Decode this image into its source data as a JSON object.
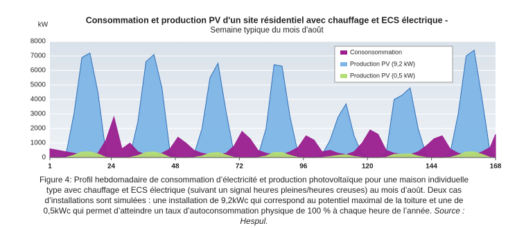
{
  "chart_data": {
    "type": "area",
    "title": "Consommation et production PV d'un site résidentiel avec chauffage et ECS électrique -",
    "subtitle": "Semaine typique du mois d'août",
    "ylabel": "kW",
    "x": [
      1,
      4,
      7,
      10,
      13,
      16,
      19,
      22,
      25,
      28,
      31,
      34,
      37,
      40,
      43,
      46,
      49,
      52,
      55,
      58,
      61,
      64,
      67,
      70,
      73,
      76,
      79,
      82,
      85,
      88,
      91,
      94,
      97,
      100,
      103,
      106,
      109,
      112,
      115,
      118,
      121,
      124,
      127,
      130,
      133,
      136,
      139,
      142,
      145,
      148,
      151,
      154,
      157,
      160,
      163,
      166,
      168
    ],
    "series": [
      {
        "name": "Consonsommation",
        "color": "#9a1d8e",
        "values": [
          600,
          500,
          400,
          300,
          200,
          200,
          300,
          1200,
          2800,
          600,
          1000,
          400,
          200,
          200,
          300,
          600,
          1400,
          1000,
          500,
          300,
          200,
          200,
          300,
          800,
          1800,
          1300,
          500,
          300,
          200,
          200,
          400,
          700,
          1500,
          1200,
          400,
          500,
          300,
          200,
          400,
          1000,
          1900,
          1600,
          500,
          300,
          200,
          200,
          400,
          800,
          1300,
          1500,
          600,
          300,
          200,
          200,
          400,
          700,
          1600
        ]
      },
      {
        "name": "Production PV (9,2 kW)",
        "color": "#7db5e6",
        "values": [
          0,
          0,
          200,
          3000,
          6900,
          7200,
          4500,
          300,
          0,
          0,
          100,
          2500,
          6600,
          7100,
          4800,
          400,
          0,
          0,
          200,
          2000,
          5500,
          6500,
          3200,
          300,
          0,
          0,
          100,
          2000,
          6400,
          6300,
          2800,
          300,
          0,
          0,
          200,
          1200,
          2800,
          3700,
          1500,
          200,
          0,
          0,
          300,
          4000,
          4300,
          4800,
          2000,
          200,
          0,
          0,
          300,
          3000,
          7000,
          7400,
          4000,
          300,
          0
        ]
      },
      {
        "name": "Production PV (0,5 kW)",
        "color": "#b4de74",
        "values": [
          0,
          0,
          10,
          170,
          380,
          400,
          250,
          20,
          0,
          0,
          10,
          140,
          360,
          390,
          260,
          20,
          0,
          0,
          10,
          110,
          300,
          360,
          180,
          20,
          0,
          0,
          10,
          110,
          350,
          350,
          150,
          20,
          0,
          0,
          10,
          70,
          150,
          200,
          80,
          10,
          0,
          0,
          20,
          220,
          240,
          260,
          110,
          10,
          0,
          0,
          20,
          170,
          380,
          400,
          220,
          20,
          0
        ]
      }
    ],
    "xlim": [
      1,
      168
    ],
    "xticks": [
      1,
      24,
      48,
      72,
      96,
      120,
      144,
      168
    ],
    "ylim": [
      0,
      8000
    ],
    "yticks": [
      0,
      1000,
      2000,
      3000,
      4000,
      5000,
      6000,
      7000,
      8000
    ],
    "grid": true,
    "legend": "top-right"
  },
  "caption": {
    "lines": [
      "Figure 4: Profil hebdomadaire de consommation d’électricité et production photovoltaïque pour une maison individuelle",
      "type avec chauffage et ECS électrique (suivant un signal heures pleines/heures creuses) au mois d’août. Deux cas",
      "d’installations sont simulées : une installation de 9,2kWc qui correspond au potentiel maximal de la toiture et une de",
      "0,5kWc qui permet d’atteindre un taux d’autoconsommation physique de 100  % à chaque heure de l’année."
    ],
    "source": [
      "Source :",
      "Hespul."
    ]
  }
}
